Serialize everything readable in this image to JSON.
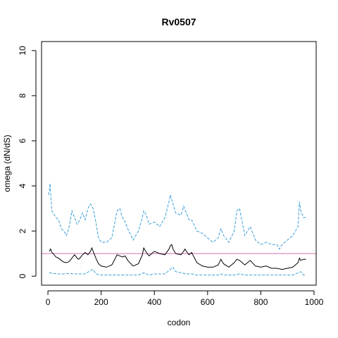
{
  "chart_data": {
    "type": "line",
    "title": "Rv0507",
    "xlabel": "codon",
    "ylabel": "omega (dN/dS)",
    "xlim": [
      -24,
      1008
    ],
    "ylim": [
      -0.4,
      10.4
    ],
    "x_ticks": [
      0,
      200,
      400,
      600,
      800,
      1000
    ],
    "y_ticks": [
      0,
      2,
      4,
      6,
      8,
      10
    ],
    "grid": false,
    "legend": "none",
    "reference_line": {
      "y": 1,
      "color": "#d070b0"
    },
    "series": [
      {
        "style": "solid",
        "color": "#000000",
        "x": [
          5,
          10,
          15,
          20,
          30,
          40,
          50,
          60,
          70,
          80,
          90,
          100,
          110,
          115,
          120,
          130,
          140,
          150,
          160,
          165,
          170,
          180,
          190,
          200,
          220,
          240,
          260,
          270,
          280,
          290,
          300,
          320,
          340,
          355,
          360,
          370,
          380,
          400,
          420,
          440,
          455,
          460,
          465,
          470,
          480,
          500,
          510,
          515,
          520,
          530,
          540,
          560,
          580,
          600,
          620,
          640,
          650,
          660,
          680,
          700,
          710,
          720,
          740,
          760,
          780,
          800,
          820,
          840,
          860,
          880,
          900,
          920,
          940,
          945,
          950,
          960,
          970
        ],
        "y": [
          1.1,
          1.2,
          1.05,
          1.0,
          0.85,
          0.8,
          0.7,
          0.62,
          0.6,
          0.65,
          0.8,
          0.95,
          0.8,
          0.75,
          0.8,
          0.95,
          1.05,
          0.95,
          1.1,
          1.25,
          1.1,
          0.8,
          0.55,
          0.45,
          0.4,
          0.5,
          0.95,
          0.9,
          0.85,
          0.9,
          0.7,
          0.45,
          0.55,
          0.95,
          1.25,
          1.05,
          0.9,
          1.1,
          1.0,
          0.95,
          1.2,
          1.35,
          1.4,
          1.2,
          1.0,
          0.95,
          1.1,
          1.2,
          1.1,
          0.95,
          1.05,
          0.6,
          0.45,
          0.4,
          0.4,
          0.5,
          0.75,
          0.55,
          0.4,
          0.6,
          0.75,
          0.7,
          0.5,
          0.7,
          0.45,
          0.4,
          0.45,
          0.35,
          0.35,
          0.3,
          0.35,
          0.4,
          0.6,
          0.8,
          0.7,
          0.75,
          0.75
        ]
      },
      {
        "style": "dashed",
        "color": "#3a9fd8",
        "x": [
          2,
          5,
          8,
          10,
          15,
          20,
          30,
          40,
          50,
          60,
          70,
          80,
          90,
          100,
          110,
          120,
          130,
          140,
          150,
          160,
          170,
          180,
          190,
          200,
          210,
          220,
          240,
          260,
          270,
          280,
          290,
          300,
          320,
          340,
          355,
          360,
          370,
          380,
          400,
          420,
          440,
          455,
          460,
          470,
          480,
          500,
          510,
          520,
          530,
          540,
          560,
          580,
          600,
          620,
          640,
          650,
          660,
          680,
          700,
          710,
          720,
          740,
          760,
          780,
          800,
          820,
          840,
          860,
          870,
          880,
          900,
          920,
          940,
          945,
          950,
          960,
          970
        ],
        "y": [
          3.6,
          3.8,
          4.1,
          3.7,
          2.9,
          2.8,
          2.6,
          2.5,
          2.1,
          2.0,
          1.8,
          2.2,
          2.9,
          2.6,
          2.3,
          2.5,
          2.8,
          2.5,
          3.0,
          3.2,
          3.0,
          2.4,
          1.7,
          1.5,
          1.5,
          1.5,
          1.7,
          2.9,
          3.0,
          2.6,
          2.4,
          2.1,
          1.6,
          2.0,
          2.6,
          2.9,
          2.7,
          2.3,
          2.4,
          2.2,
          2.6,
          3.3,
          3.6,
          3.2,
          2.8,
          2.7,
          3.1,
          2.8,
          2.5,
          2.5,
          2.0,
          1.9,
          1.7,
          1.5,
          1.7,
          2.1,
          1.8,
          1.5,
          2.0,
          2.9,
          3.0,
          1.8,
          2.2,
          1.6,
          1.4,
          1.5,
          1.4,
          1.4,
          1.2,
          1.4,
          1.6,
          1.8,
          2.2,
          3.3,
          2.9,
          2.6,
          2.6
        ]
      },
      {
        "style": "dashed",
        "color": "#3a9fd8",
        "x": [
          5,
          20,
          40,
          60,
          80,
          100,
          120,
          140,
          160,
          170,
          180,
          200,
          240,
          260,
          280,
          300,
          340,
          360,
          380,
          400,
          440,
          460,
          470,
          480,
          500,
          520,
          540,
          560,
          600,
          640,
          650,
          660,
          700,
          720,
          740,
          760,
          800,
          840,
          880,
          920,
          940,
          950,
          960,
          970
        ],
        "y": [
          0.15,
          0.12,
          0.1,
          0.1,
          0.12,
          0.1,
          0.1,
          0.1,
          0.25,
          0.3,
          0.1,
          0.05,
          0.05,
          0.05,
          0.05,
          0.05,
          0.05,
          0.15,
          0.05,
          0.1,
          0.1,
          0.3,
          0.4,
          0.2,
          0.15,
          0.1,
          0.1,
          0.05,
          0.05,
          0.05,
          0.1,
          0.05,
          0.05,
          0.1,
          0.05,
          0.05,
          0.05,
          0.05,
          0.05,
          0.05,
          0.15,
          0.2,
          0.05,
          0.05
        ]
      }
    ]
  }
}
